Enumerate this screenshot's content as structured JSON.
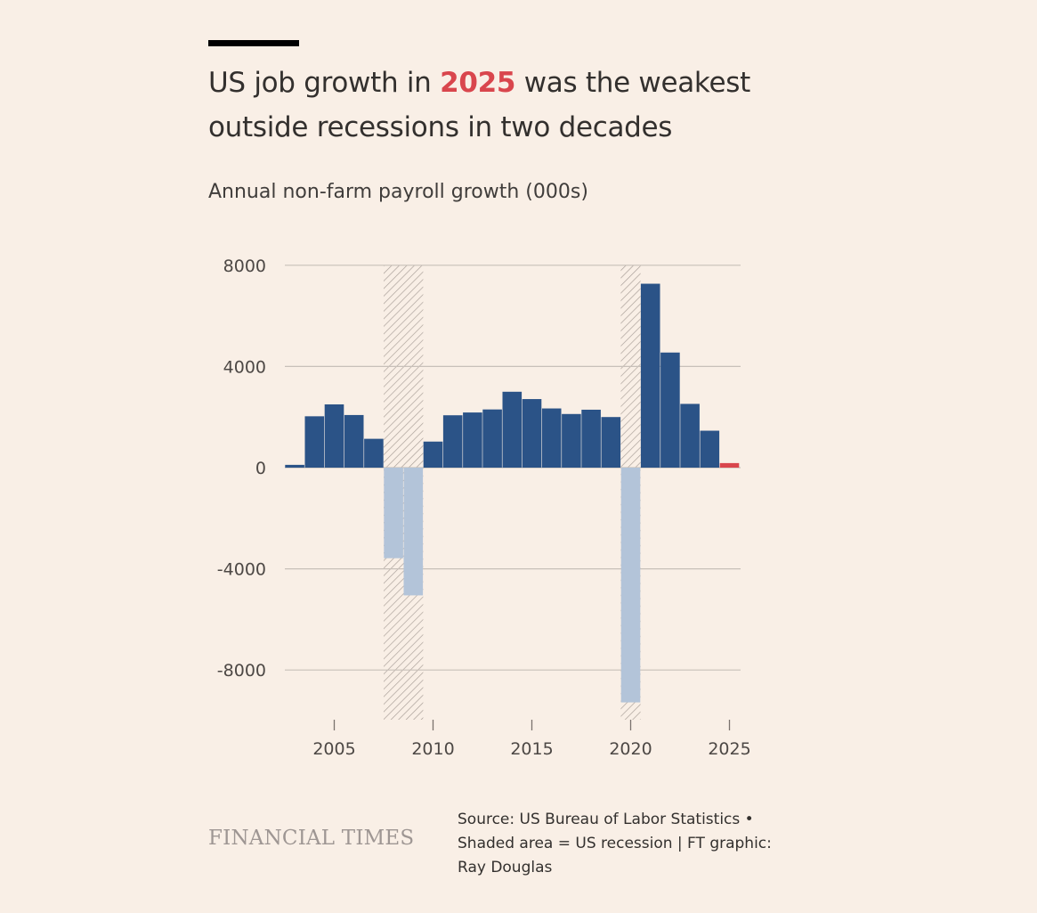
{
  "header": {
    "title_pre": "US job growth in ",
    "title_highlight": "2025",
    "title_post": " was the weakest outside recessions in two decades",
    "subtitle": "Annual non-farm payroll growth (000s)"
  },
  "footer": {
    "logo": "FINANCIAL TIMES",
    "source": "Source: US Bureau of Labor Statistics • Shaded area = US recession | FT graphic: Ray Douglas"
  },
  "colors": {
    "background": "#f9efe6",
    "bar": "#2b5387",
    "bar_recession": "#b3c4d9",
    "highlight": "#d9464d",
    "grid": "#c8c0b9",
    "hatch": "#a69c95"
  },
  "chart_data": {
    "type": "bar",
    "title": "US job growth in 2025 was the weakest outside recessions in two decades",
    "ylabel": "Annual non-farm payroll growth (000s)",
    "xlabel": "",
    "ylim": [
      -10000,
      8000
    ],
    "yticks": [
      8000,
      4000,
      0,
      -4000,
      -8000
    ],
    "ytick_labels": [
      "8000",
      "4000",
      "0",
      "-4000",
      "-8000"
    ],
    "xticks": [
      2005,
      2010,
      2015,
      2020,
      2025
    ],
    "xtick_labels": [
      "2005",
      "2010",
      "2015",
      "2020",
      "2025"
    ],
    "x": [
      2003,
      2004,
      2005,
      2006,
      2007,
      2008,
      2009,
      2010,
      2011,
      2012,
      2013,
      2014,
      2015,
      2016,
      2017,
      2018,
      2019,
      2020,
      2021,
      2022,
      2023,
      2024,
      2025
    ],
    "values": [
      110,
      2030,
      2500,
      2080,
      1140,
      -3580,
      -5050,
      1030,
      2070,
      2180,
      2300,
      3000,
      2710,
      2340,
      2120,
      2290,
      2000,
      -9280,
      7270,
      4550,
      2520,
      1460,
      180
    ],
    "recession_bars": [
      2008,
      2009,
      2020
    ],
    "highlight_bar": 2025,
    "recession_periods": [
      [
        2007.5,
        2009.5
      ],
      [
        2019.5,
        2020.5
      ]
    ],
    "grid": true
  }
}
